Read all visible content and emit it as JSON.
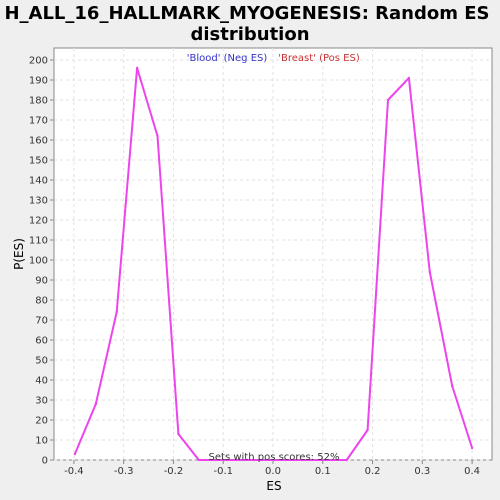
{
  "chart_data": {
    "type": "line",
    "title_line1": "H_ALL_16_HALLMARK_MYOGENESIS: Random ES",
    "title_line2": "distribution",
    "xlabel": "ES",
    "ylabel": "P(ES)",
    "xlim": [
      -0.44,
      0.44
    ],
    "ylim": [
      0,
      206
    ],
    "x_ticks": [
      -0.4,
      -0.3,
      -0.2,
      -0.1,
      0.0,
      0.1,
      0.2,
      0.3,
      0.4
    ],
    "x_tick_labels": [
      "-0.4",
      "-0.3",
      "-0.2",
      "-0.1",
      "0.0",
      "0.1",
      "0.2",
      "0.3",
      "0.4"
    ],
    "y_ticks": [
      0,
      10,
      20,
      30,
      40,
      50,
      60,
      70,
      80,
      90,
      100,
      110,
      120,
      130,
      140,
      150,
      160,
      170,
      180,
      190,
      200
    ],
    "grid": true,
    "legend": {
      "placement": "top-center",
      "entries": [
        {
          "label": "'Blood' (Neg ES)",
          "color": "#3333cc"
        },
        {
          "label": "'Breast' (Pos ES)",
          "color": "#cc3333"
        }
      ]
    },
    "annotation": "Sets with pos scores: 52%",
    "series": [
      {
        "color": "#ee44ee",
        "x": [
          -0.398,
          -0.356,
          -0.314,
          -0.273,
          -0.232,
          -0.19,
          -0.149,
          0.148,
          0.19,
          0.231,
          0.273,
          0.315,
          0.36,
          0.4
        ],
        "y": [
          3,
          28,
          74,
          196,
          162,
          13,
          0,
          0,
          15,
          180,
          191,
          94,
          37,
          6
        ]
      }
    ],
    "colors": {
      "plot_bg": "#ffffff",
      "page_bg": "#efefef",
      "grid": "#e2e2e2",
      "axis": "#888888"
    }
  }
}
